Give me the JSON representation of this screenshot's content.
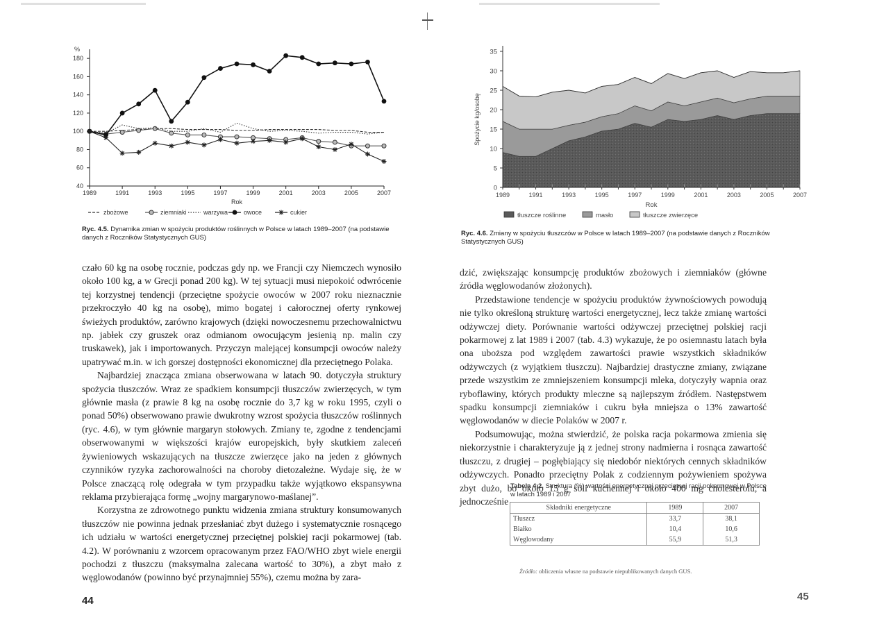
{
  "left_page": {
    "page_number": "44",
    "figure": {
      "caption_label": "Ryc. 4.5.",
      "caption_text": "Dynamika zmian w spożyciu produktów roślinnych w Polsce w latach 1989–2007 (na podstawie danych z Roczników Statystycznych GUS)"
    },
    "paragraphs": [
      "czało 60 kg na osobę rocznie, podczas gdy np. we Francji czy Niemczech wynosiło około 100 kg, a w Grecji ponad 200 kg). W tej sytuacji musi niepokoić odwrócenie tej korzystnej tendencji (przeciętne spożycie owoców w 2007 roku nieznacznie przekroczyło 40 kg na osobę), mimo bogatej i całorocznej oferty rynkowej świeżych produktów, zarówno krajowych (dzięki nowoczesnemu przechowalnictwu np. jabłek czy gruszek oraz odmianom owocującym jesienią np. malin czy truskawek), jak i importowanych. Przyczyn malejącej konsumpcji owoców należy upatrywać m.in. w ich gorszej dostępności ekonomicznej dla przeciętnego Polaka.",
      "Najbardziej znacząca zmiana obserwowana w latach 90. dotyczyła struktury spożycia tłuszczów. Wraz ze spadkiem konsumpcji tłuszczów zwierzęcych, w tym głównie masła (z prawie 8 kg na osobę rocznie do 3,7 kg w roku 1995, czyli o ponad 50%) obserwowano prawie dwukrotny wzrost spożycia tłuszczów roślinnych (ryc. 4.6), w tym głównie margaryn stołowych. Zmiany te, zgodne z tendencjami obserwowanymi w większości krajów europejskich, były skutkiem zaleceń żywieniowych wskazujących na tłuszcze zwierzęce jako na jeden z głównych czynników ryzyka zachorowalności na choroby dietozależne. Wydaje się, że w Polsce znaczącą rolę odegrała w tym przypadku także wyjątkowo ekspansywna reklama przybierająca formę „wojny margarynowo-maślanej”.",
      "Korzystna ze zdrowotnego punktu widzenia zmiana struktury konsumowanych tłuszczów nie powinna jednak przesłaniać zbyt dużego i systematycznie rosnącego ich udziału w wartości energetycznej przeciętnej polskiej racji pokarmowej (tab. 4.2). W porównaniu z wzorcem opracowanym przez FAO/WHO zbyt wiele energii pochodzi z tłuszczu (maksymalna zalecana wartość to 30%), a zbyt mało z węglowodanów (powinno być przynajmniej 55%), czemu można by zara-"
    ]
  },
  "right_page": {
    "page_number": "45",
    "figure": {
      "caption_label": "Ryc. 4.6.",
      "caption_text": "Zmiany w spożyciu tłuszczów w Polsce w latach 1989–2007 (na podstawie danych z Roczników Statystycznych GUS)"
    },
    "paragraphs": [
      "dzić, zwiększając konsumpcję produktów zbożowych i ziemniaków (główne źródła węglowodanów złożonych).",
      "Przedstawione tendencje w spożyciu produktów żywnościowych powodują nie tylko określoną strukturę wartości energetycznej, lecz także zmianę wartości odżywczej diety. Porównanie wartości odżywczej przeciętnej polskiej racji pokarmowej z lat 1989 i 2007 (tab. 4.3) wykazuje, że po osiemnastu latach była ona uboższa pod względem zawartości prawie wszystkich składników odżywczych (z wyjątkiem tłuszczu). Najbardziej drastyczne zmiany, związane przede wszystkim ze zmniejszeniem konsumpcji mleka, dotyczyły wapnia oraz ryboflawiny, których produkty mleczne są najlepszym źródłem. Następstwem spadku konsumpcji ziemniaków i cukru była mniejsza o 13% zawartość węglowodanów w diecie Polaków w 2007 r.",
      "Podsumowując, można stwierdzić, że polska racja pokarmowa zmienia się niekorzystnie i charakteryzuje ją z jednej strony nadmierna i rosnąca zawartość tłuszczu, z drugiej – pogłębiający się niedobór niektórych cennych składników odżywczych. Ponadto przeciętny Polak z codziennym pożywieniem spożywa zbyt dużo, bo około 15 g soli kuchennej i około 400 mg cholesterolu, a jednocześnie"
    ],
    "table": {
      "caption_label": "Tabela 4.2.",
      "caption_text": "Struktura (%) wartości energetycznej przeciętnej racji pokarmowej w Polsce w latach 1989 i 2007",
      "headers": [
        "Składniki energetyczne",
        "1989",
        "2007"
      ],
      "rows": [
        [
          "Tłuszcz",
          "33,7",
          "38,1"
        ],
        [
          "Białko",
          "10,4",
          "10,6"
        ],
        [
          "Węglowodany",
          "55,9",
          "51,3"
        ]
      ],
      "source_label": "Źródło:",
      "source_text": "obliczenia własne na podstawie niepublikowanych danych GUS."
    }
  },
  "chart_data": [
    {
      "type": "line",
      "title": "",
      "xlabel": "Rok",
      "ylabel": "%",
      "ylim": [
        40,
        190
      ],
      "yticks": [
        40,
        60,
        80,
        100,
        120,
        140,
        160,
        180
      ],
      "xlim": [
        1989,
        2007
      ],
      "xticks": [
        1989,
        1991,
        1993,
        1995,
        1997,
        1999,
        2001,
        2003,
        2005,
        2007
      ],
      "x": [
        1989,
        1990,
        1991,
        1992,
        1993,
        1994,
        1995,
        1996,
        1997,
        1998,
        1999,
        2000,
        2001,
        2002,
        2003,
        2004,
        2005,
        2006,
        2007
      ],
      "legend_position": "bottom",
      "grid": false,
      "series": [
        {
          "name": "zbożowe",
          "style": "dashed",
          "marker": "none",
          "color": "#333333",
          "values": [
            100,
            100,
            101,
            102,
            103,
            103,
            102,
            102,
            102,
            101,
            101,
            102,
            102,
            102,
            102,
            101,
            101,
            99,
            99
          ]
        },
        {
          "name": "ziemniaki",
          "style": "solid",
          "marker": "circle",
          "color": "#555555",
          "values": [
            100,
            97,
            99,
            101,
            103,
            98,
            96,
            96,
            94,
            94,
            93,
            92,
            91,
            93,
            89,
            88,
            84,
            84,
            84
          ]
        },
        {
          "name": "warzywa",
          "style": "dotted",
          "marker": "none",
          "color": "#333333",
          "values": [
            100,
            98,
            107,
            103,
            104,
            100,
            100,
            103,
            99,
            109,
            103,
            100,
            101,
            100,
            98,
            99,
            99,
            97,
            99
          ]
        },
        {
          "name": "owoce",
          "style": "solid",
          "marker": "dot",
          "color": "#111111",
          "values": [
            100,
            96,
            120,
            130,
            145,
            111,
            132,
            159,
            169,
            174,
            173,
            166,
            183,
            181,
            174,
            175,
            174,
            176,
            133
          ]
        },
        {
          "name": "cukier",
          "style": "solid",
          "marker": "star",
          "color": "#222222",
          "values": [
            100,
            93,
            76,
            77,
            87,
            84,
            88,
            85,
            91,
            87,
            89,
            90,
            88,
            92,
            83,
            80,
            86,
            75,
            67
          ]
        }
      ]
    },
    {
      "type": "area",
      "title": "",
      "xlabel": "Rok",
      "ylabel": "Spożycie kg/osobę",
      "ylim": [
        0,
        35
      ],
      "yticks": [
        0,
        5,
        10,
        15,
        20,
        25,
        30,
        35
      ],
      "xlim": [
        1989,
        2007
      ],
      "xticks": [
        1989,
        1991,
        1993,
        1995,
        1997,
        1999,
        2001,
        2003,
        2005,
        2007
      ],
      "x": [
        1989,
        1990,
        1991,
        1992,
        1993,
        1994,
        1995,
        1996,
        1997,
        1998,
        1999,
        2000,
        2001,
        2002,
        2003,
        2004,
        2005,
        2006,
        2007
      ],
      "legend_position": "bottom",
      "stacked": true,
      "series": [
        {
          "name": "tłuszcze roślinne",
          "color": "#5a5a5a",
          "values": [
            9,
            8,
            8,
            10,
            12,
            13,
            14.5,
            15,
            16.5,
            15.5,
            17.5,
            17,
            17.5,
            18.5,
            17.5,
            18.5,
            19,
            19,
            19
          ]
        },
        {
          "name": "masło",
          "color": "#9a9a9a",
          "values": [
            8,
            7,
            7,
            5,
            4,
            3.8,
            3.7,
            4,
            4.5,
            4.2,
            4.5,
            4,
            4.5,
            4.5,
            4.3,
            4.3,
            4.5,
            4.5,
            4.5
          ]
        },
        {
          "name": "tłuszcze zwierzęce",
          "color": "#c8c8c8",
          "values": [
            9,
            8.5,
            8.3,
            9.5,
            9,
            7.5,
            7.8,
            7.5,
            7.3,
            7,
            7.3,
            7,
            7.5,
            7,
            6.5,
            7,
            6,
            6,
            6.5
          ]
        }
      ]
    }
  ]
}
